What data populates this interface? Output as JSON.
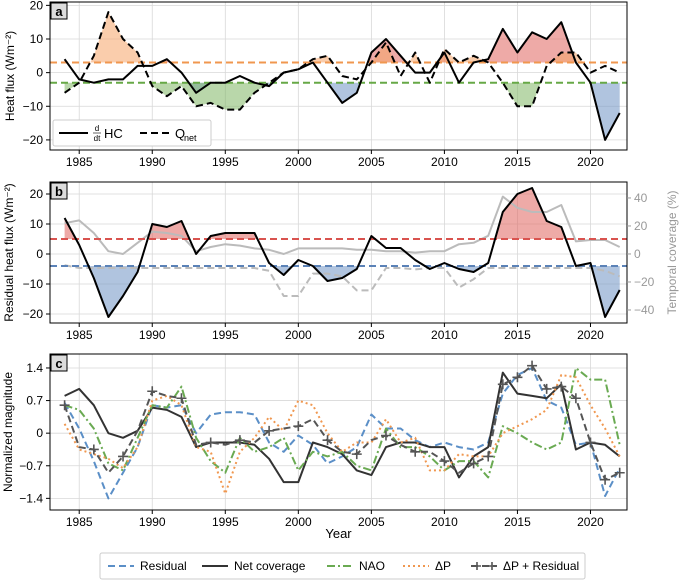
{
  "chart_data": [
    {
      "type": "line",
      "panel_label": "a",
      "ylabel": "Heat flux (Wm⁻²)",
      "ylim": [
        -23,
        21
      ],
      "xlim": [
        1983,
        2022.5
      ],
      "grid": true,
      "x_ticks": [
        1985,
        1990,
        1995,
        2000,
        2005,
        2010,
        2015,
        2020
      ],
      "x_tick_labels": [
        "1985",
        "1990",
        "1995",
        "2000",
        "2005",
        "2010",
        "2015",
        "2020"
      ],
      "y_ticks": [
        -20,
        -10,
        0,
        10,
        20
      ],
      "y_tick_labels": [
        "−20",
        "−10",
        "0",
        "10",
        "20"
      ],
      "series": [
        {
          "name": "dHC/dt",
          "style": "solid",
          "color": "#000000",
          "x": [
            1984,
            1985,
            1986,
            1987,
            1988,
            1989,
            1990,
            1991,
            1992,
            1993,
            1994,
            1995,
            1996,
            1997,
            1998,
            1999,
            2000,
            2001,
            2002,
            2003,
            2004,
            2005,
            2006,
            2007,
            2008,
            2009,
            2010,
            2011,
            2012,
            2013,
            2014,
            2015,
            2016,
            2017,
            2018,
            2019,
            2020,
            2021,
            2022
          ],
          "values": [
            4,
            -2,
            -3,
            -2,
            -2,
            2,
            2,
            4,
            0,
            -6,
            -3,
            -3,
            -1,
            -3,
            -4,
            0,
            1,
            3,
            -3,
            -9,
            -6,
            6,
            10,
            5,
            0,
            0,
            6,
            -3,
            3,
            4,
            13,
            6,
            12,
            10,
            15,
            3,
            -3,
            -20,
            -12
          ]
        },
        {
          "name": "Qnet",
          "style": "dashed",
          "color": "#000000",
          "x": [
            1984,
            1985,
            1986,
            1987,
            1988,
            1989,
            1990,
            1991,
            1992,
            1993,
            1994,
            1995,
            1996,
            1997,
            1998,
            1999,
            2000,
            2001,
            2002,
            2003,
            2004,
            2005,
            2006,
            2007,
            2008,
            2009,
            2010,
            2011,
            2012,
            2013,
            2014,
            2015,
            2016,
            2017,
            2018,
            2019,
            2020,
            2021,
            2022
          ],
          "values": [
            -6,
            -3,
            5,
            18,
            10,
            6,
            -4,
            -7,
            -4,
            -10,
            -9,
            -11,
            -11,
            -6,
            -3,
            0,
            1,
            4,
            5,
            -1,
            -2,
            3,
            9,
            -1,
            6,
            -3,
            7,
            3,
            5,
            3,
            -3,
            -10,
            -10,
            2,
            6,
            6,
            0,
            2,
            0
          ]
        },
        {
          "name": "upper mean",
          "style": "dashed",
          "color": "#f0974f",
          "values": [
            3
          ]
        },
        {
          "name": "lower mean",
          "style": "dashed",
          "color": "#67a846",
          "values": [
            -3
          ]
        }
      ],
      "legend": {
        "position": "bottom-left",
        "entries": [
          "d/dt HC",
          "Qnet"
        ]
      },
      "legend_text": {
        "hc_frac_top": "d",
        "hc_frac_bottom": "dt",
        "hc": "HC",
        "q": "Q",
        "q_sub": "net"
      }
    },
    {
      "type": "line",
      "panel_label": "b",
      "ylabel": "Residual heat flux (Wm⁻²)",
      "y2label": "Temporal coverage (%)",
      "ylim": [
        -23,
        24
      ],
      "y2lim": [
        -49.3,
        51.4
      ],
      "xlim": [
        1983,
        2022.5
      ],
      "grid": true,
      "x_ticks": [
        1985,
        1990,
        1995,
        2000,
        2005,
        2010,
        2015,
        2020
      ],
      "x_tick_labels": [
        "1985",
        "1990",
        "1995",
        "2000",
        "2005",
        "2010",
        "2015",
        "2020"
      ],
      "y_ticks": [
        -20,
        -10,
        0,
        10,
        20
      ],
      "y_tick_labels": [
        "−20",
        "−10",
        "0",
        "10",
        "20"
      ],
      "y2_ticks": [
        -40,
        -20,
        0,
        20,
        40
      ],
      "y2_tick_labels": [
        "−40",
        "−20",
        "0",
        "20",
        "40"
      ],
      "series": [
        {
          "name": "Residual heat flux",
          "style": "solid",
          "color": "#000000",
          "x": [
            1984,
            1985,
            1986,
            1987,
            1988,
            1989,
            1990,
            1991,
            1992,
            1993,
            1994,
            1995,
            1996,
            1997,
            1998,
            1999,
            2000,
            2001,
            2002,
            2003,
            2004,
            2005,
            2006,
            2007,
            2008,
            2009,
            2010,
            2011,
            2012,
            2013,
            2014,
            2015,
            2016,
            2017,
            2018,
            2019,
            2020,
            2021,
            2022
          ],
          "values": [
            12,
            3,
            -8,
            -21,
            -14,
            -6,
            10,
            9,
            11,
            0,
            6,
            7,
            7,
            7,
            -3,
            -7,
            -2,
            -4,
            -9,
            -8,
            -5,
            6,
            2,
            2,
            -2,
            -5,
            -3,
            -5,
            -6,
            -3,
            14,
            20,
            22,
            11,
            9,
            -4,
            -3,
            -21,
            -12
          ]
        },
        {
          "name": "Temporal coverage (upper)",
          "style": "solid",
          "color": "#bbbbbb",
          "x": [
            1984,
            1985,
            1986,
            1987,
            1988,
            1989,
            1990,
            1991,
            1992,
            1993,
            1994,
            1995,
            1996,
            1997,
            1998,
            1999,
            2000,
            2001,
            2002,
            2003,
            2004,
            2005,
            2006,
            2007,
            2008,
            2009,
            2010,
            2011,
            2012,
            2013,
            2014,
            2015,
            2016,
            2017,
            2018,
            2019,
            2020,
            2021,
            2022
          ],
          "values": [
            22,
            24,
            15,
            2,
            0,
            8,
            16,
            15,
            13,
            2,
            5,
            7,
            6,
            4,
            3,
            0,
            4,
            4,
            4,
            4,
            3,
            3,
            2,
            2,
            1,
            2,
            2,
            7,
            8,
            13,
            41,
            33,
            30,
            30,
            35,
            9,
            10,
            10,
            5
          ]
        },
        {
          "name": "Temporal coverage (lower)",
          "style": "dashed",
          "color": "#bbbbbb",
          "x": [
            1984,
            1985,
            1986,
            1987,
            1988,
            1989,
            1990,
            1991,
            1992,
            1993,
            1994,
            1995,
            1996,
            1997,
            1998,
            1999,
            2000,
            2001,
            2002,
            2003,
            2004,
            2005,
            2006,
            2007,
            2008,
            2009,
            2010,
            2011,
            2012,
            2013,
            2014,
            2015,
            2016,
            2017,
            2018,
            2019,
            2020,
            2021,
            2022
          ],
          "values": [
            -8,
            -10,
            -10,
            -10,
            -10,
            -10,
            -10,
            -10,
            -10,
            -10,
            -10,
            -10,
            -10,
            -10,
            -12,
            -30,
            -30,
            -14,
            -14,
            -16,
            -26,
            -26,
            -10,
            -10,
            -11,
            -10,
            -10,
            -24,
            -18,
            -10,
            -10,
            -10,
            -10,
            -10,
            -10,
            -10,
            -10,
            -12,
            -16
          ]
        },
        {
          "name": "upper mean",
          "style": "dashed",
          "color": "#d9534f",
          "values": [
            5
          ]
        },
        {
          "name": "lower mean",
          "style": "dashed",
          "color": "#5b82b7",
          "values": [
            -4
          ]
        }
      ]
    },
    {
      "type": "line",
      "panel_label": "c",
      "xlabel": "Year",
      "ylabel": "Normalized magnitude",
      "ylim": [
        -1.65,
        1.7
      ],
      "xlim": [
        1983,
        2022.5
      ],
      "grid": true,
      "x_ticks": [
        1985,
        1990,
        1995,
        2000,
        2005,
        2010,
        2015,
        2020
      ],
      "x_tick_labels": [
        "1985",
        "1990",
        "1995",
        "2000",
        "2005",
        "2010",
        "2015",
        "2020"
      ],
      "y_ticks": [
        -1.4,
        -0.7,
        0,
        0.7,
        1.4
      ],
      "y_tick_labels": [
        "−1.4",
        "−0.7",
        "0",
        "0.7",
        "1.4"
      ],
      "series": [
        {
          "name": "Residual",
          "style": "dashed",
          "color": "#5b8fc7",
          "x": [
            1984,
            1985,
            1986,
            1987,
            1988,
            1989,
            1990,
            1991,
            1992,
            1993,
            1994,
            1995,
            1996,
            1997,
            1998,
            1999,
            2000,
            2001,
            2002,
            2003,
            2004,
            2005,
            2006,
            2007,
            2008,
            2009,
            2010,
            2011,
            2012,
            2013,
            2014,
            2015,
            2016,
            2017,
            2018,
            2019,
            2020,
            2021,
            2022
          ],
          "values": [
            0.65,
            0.1,
            -0.6,
            -1.4,
            -0.85,
            -0.3,
            0.6,
            0.55,
            0.6,
            0.0,
            0.4,
            0.45,
            0.45,
            0.4,
            -0.2,
            -0.4,
            -0.05,
            -0.25,
            -0.65,
            -0.5,
            -0.3,
            0.4,
            0.1,
            0.1,
            -0.15,
            -0.3,
            -0.2,
            -0.3,
            -0.35,
            -0.2,
            0.85,
            1.25,
            1.4,
            0.7,
            0.55,
            -0.25,
            -0.2,
            -1.35,
            -0.75
          ]
        },
        {
          "name": "Net coverage",
          "style": "solid",
          "color": "#333333",
          "x": [
            1984,
            1985,
            1986,
            1987,
            1988,
            1989,
            1990,
            1991,
            1992,
            1993,
            1994,
            1995,
            1996,
            1997,
            1998,
            1999,
            2000,
            2001,
            2002,
            2003,
            2004,
            2005,
            2006,
            2007,
            2008,
            2009,
            2010,
            2011,
            2012,
            2013,
            2014,
            2015,
            2016,
            2017,
            2018,
            2019,
            2020,
            2021,
            2022
          ],
          "values": [
            0.8,
            0.95,
            0.6,
            0.0,
            -0.1,
            0.05,
            0.55,
            0.5,
            0.35,
            -0.3,
            -0.2,
            -0.2,
            -0.2,
            -0.25,
            -0.55,
            -1.05,
            -1.05,
            -0.2,
            -0.3,
            -0.45,
            -0.8,
            -0.9,
            -0.3,
            -0.2,
            -0.2,
            -0.3,
            -0.3,
            -0.95,
            -0.5,
            -0.3,
            1.3,
            0.85,
            0.8,
            0.75,
            1.05,
            -0.35,
            -0.2,
            -0.25,
            -0.5
          ]
        },
        {
          "name": "NAO",
          "style": "dashdot",
          "color": "#6aaa52",
          "x": [
            1984,
            1985,
            1986,
            1987,
            1988,
            1989,
            1990,
            1991,
            1992,
            1993,
            1994,
            1995,
            1996,
            1997,
            1998,
            1999,
            2000,
            2001,
            2002,
            2003,
            2004,
            2005,
            2006,
            2007,
            2008,
            2009,
            2010,
            2011,
            2012,
            2013,
            2014,
            2015,
            2016,
            2017,
            2018,
            2019,
            2020,
            2021,
            2022
          ],
          "values": [
            0.6,
            0.5,
            0.1,
            -0.65,
            -0.8,
            -0.1,
            0.6,
            0.55,
            1.0,
            -0.1,
            -0.6,
            -0.85,
            -0.1,
            -0.4,
            -0.3,
            -0.1,
            -0.8,
            -0.4,
            -0.5,
            -0.4,
            -0.7,
            -0.8,
            0.1,
            -0.3,
            -0.3,
            -0.5,
            -0.8,
            -0.6,
            -0.6,
            -0.95,
            0.15,
            0.0,
            -0.2,
            -0.35,
            -0.2,
            1.4,
            1.15,
            1.15,
            -0.25
          ]
        },
        {
          "name": "ΔP",
          "style": "dotted",
          "color": "#f0974f",
          "x": [
            1984,
            1985,
            1986,
            1987,
            1988,
            1989,
            1990,
            1991,
            1992,
            1993,
            1994,
            1995,
            1996,
            1997,
            1998,
            1999,
            2000,
            2001,
            2002,
            2003,
            2004,
            2005,
            2006,
            2007,
            2008,
            2009,
            2010,
            2011,
            2012,
            2013,
            2014,
            2015,
            2016,
            2017,
            2018,
            2019,
            2020,
            2021,
            2022
          ],
          "values": [
            0.2,
            -0.35,
            -0.45,
            -0.55,
            -0.75,
            -0.3,
            0.7,
            0.8,
            0.6,
            -0.3,
            -0.4,
            -1.3,
            -0.4,
            -0.1,
            0.35,
            0.05,
            0.7,
            0.6,
            0.0,
            -0.4,
            -0.2,
            -0.2,
            0.3,
            -0.2,
            -0.1,
            -0.8,
            -0.8,
            -0.45,
            -0.5,
            -0.5,
            0.0,
            0.15,
            0.3,
            0.5,
            1.25,
            1.2,
            0.6,
            0.1,
            -0.5
          ]
        },
        {
          "name": "ΔP + Residual",
          "style": "dashed-plus",
          "color": "#555555",
          "x": [
            1984,
            1985,
            1986,
            1987,
            1988,
            1989,
            1990,
            1991,
            1992,
            1993,
            1994,
            1995,
            1996,
            1997,
            1998,
            1999,
            2000,
            2001,
            2002,
            2003,
            2004,
            2005,
            2006,
            2007,
            2008,
            2009,
            2010,
            2011,
            2012,
            2013,
            2014,
            2015,
            2016,
            2017,
            2018,
            2019,
            2020,
            2021,
            2022
          ],
          "values": [
            0.6,
            -0.3,
            -0.35,
            -0.85,
            -0.5,
            0.05,
            0.9,
            0.8,
            0.75,
            -0.25,
            -0.2,
            -0.25,
            -0.15,
            -0.2,
            0.05,
            0.1,
            0.15,
            0.3,
            -0.15,
            -0.4,
            -0.45,
            -0.15,
            -0.05,
            -0.25,
            -0.4,
            -0.4,
            -0.6,
            -0.85,
            -0.65,
            -0.5,
            1.05,
            1.2,
            1.45,
            0.95,
            1.0,
            0.75,
            -0.2,
            -1.0,
            -0.85
          ]
        }
      ],
      "legend": {
        "position": "bottom",
        "entries": [
          "Residual",
          "Net coverage",
          "NAO",
          "ΔP",
          "ΔP + Residual"
        ]
      }
    }
  ]
}
